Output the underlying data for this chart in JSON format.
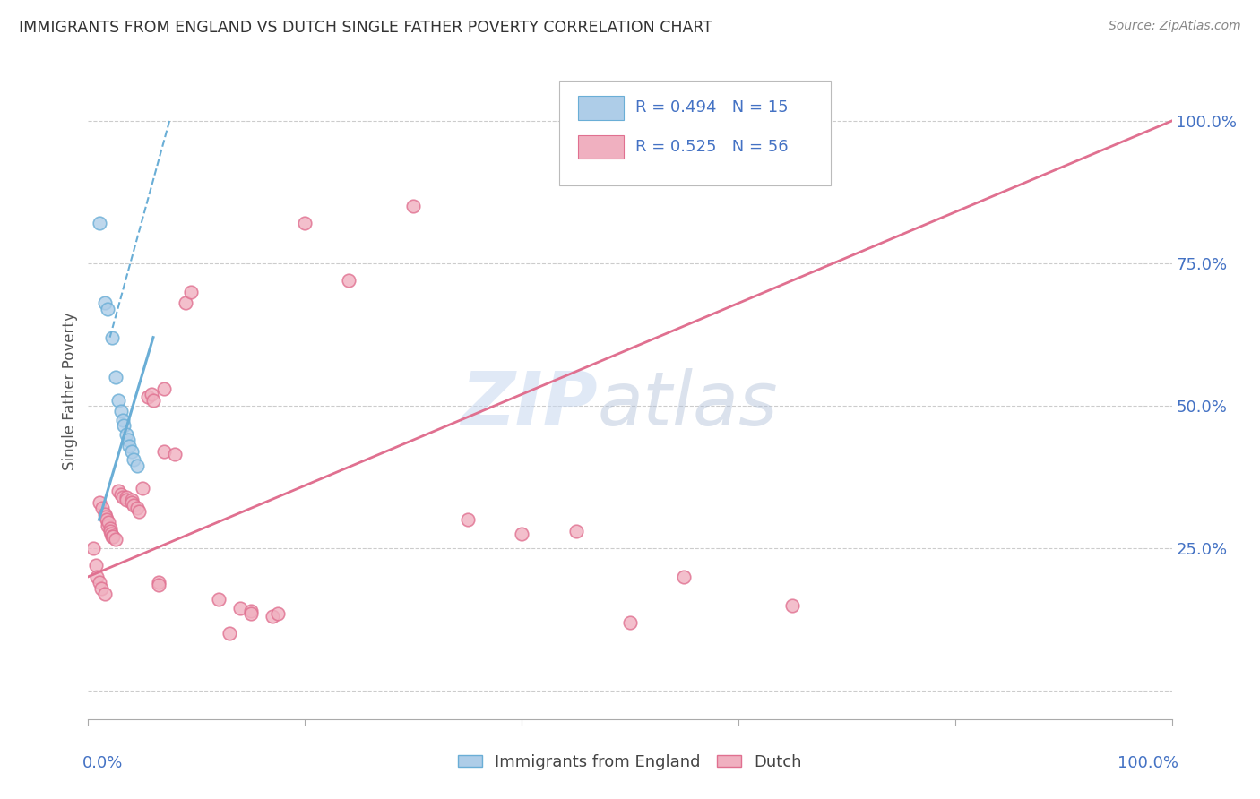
{
  "title": "IMMIGRANTS FROM ENGLAND VS DUTCH SINGLE FATHER POVERTY CORRELATION CHART",
  "source": "Source: ZipAtlas.com",
  "ylabel": "Single Father Poverty",
  "yaxis_labels": [
    "25.0%",
    "50.0%",
    "75.0%",
    "100.0%"
  ],
  "legend_entries": [
    {
      "label": "R = 0.494   N = 15",
      "color": "#a8c4e0"
    },
    {
      "label": "R = 0.525   N = 56",
      "color": "#f4a0b0"
    }
  ],
  "legend_label1": "Immigrants from England",
  "legend_label2": "Dutch",
  "watermark_zip": "ZIP",
  "watermark_atlas": "atlas",
  "blue_scatter": [
    [
      1.0,
      82.0
    ],
    [
      1.5,
      68.0
    ],
    [
      1.8,
      67.0
    ],
    [
      2.2,
      62.0
    ],
    [
      2.5,
      55.0
    ],
    [
      2.8,
      51.0
    ],
    [
      3.0,
      49.0
    ],
    [
      3.2,
      47.5
    ],
    [
      3.3,
      46.5
    ],
    [
      3.5,
      45.0
    ],
    [
      3.7,
      44.0
    ],
    [
      3.8,
      43.0
    ],
    [
      4.0,
      42.0
    ],
    [
      4.2,
      40.5
    ],
    [
      4.5,
      39.5
    ]
  ],
  "pink_scatter": [
    [
      0.5,
      25.0
    ],
    [
      0.7,
      22.0
    ],
    [
      0.8,
      20.0
    ],
    [
      1.0,
      19.0
    ],
    [
      1.0,
      33.0
    ],
    [
      1.2,
      18.0
    ],
    [
      1.3,
      32.0
    ],
    [
      1.5,
      31.0
    ],
    [
      1.5,
      17.0
    ],
    [
      1.6,
      30.5
    ],
    [
      1.7,
      30.0
    ],
    [
      1.8,
      29.0
    ],
    [
      1.9,
      29.5
    ],
    [
      2.0,
      28.5
    ],
    [
      2.0,
      28.0
    ],
    [
      2.1,
      27.5
    ],
    [
      2.2,
      27.0
    ],
    [
      2.3,
      27.0
    ],
    [
      2.5,
      26.5
    ],
    [
      2.8,
      35.0
    ],
    [
      3.0,
      34.5
    ],
    [
      3.2,
      34.0
    ],
    [
      3.5,
      34.0
    ],
    [
      3.5,
      33.5
    ],
    [
      4.0,
      33.5
    ],
    [
      4.0,
      33.0
    ],
    [
      4.2,
      32.5
    ],
    [
      4.5,
      32.0
    ],
    [
      4.7,
      31.5
    ],
    [
      5.0,
      35.5
    ],
    [
      5.5,
      51.5
    ],
    [
      5.8,
      52.0
    ],
    [
      6.0,
      51.0
    ],
    [
      6.5,
      19.0
    ],
    [
      6.5,
      18.5
    ],
    [
      7.0,
      53.0
    ],
    [
      7.0,
      42.0
    ],
    [
      8.0,
      41.5
    ],
    [
      9.0,
      68.0
    ],
    [
      9.5,
      70.0
    ],
    [
      12.0,
      16.0
    ],
    [
      13.0,
      10.0
    ],
    [
      14.0,
      14.5
    ],
    [
      15.0,
      14.0
    ],
    [
      15.0,
      13.5
    ],
    [
      17.0,
      13.0
    ],
    [
      17.5,
      13.5
    ],
    [
      20.0,
      82.0
    ],
    [
      24.0,
      72.0
    ],
    [
      30.0,
      85.0
    ],
    [
      35.0,
      30.0
    ],
    [
      40.0,
      27.5
    ],
    [
      45.0,
      28.0
    ],
    [
      50.0,
      12.0
    ],
    [
      55.0,
      20.0
    ],
    [
      65.0,
      15.0
    ]
  ],
  "blue_line_solid": {
    "x": [
      1.0,
      6.0
    ],
    "y": [
      30.0,
      62.0
    ]
  },
  "blue_line_dashed": {
    "x": [
      2.0,
      7.5
    ],
    "y": [
      62.0,
      100.0
    ]
  },
  "pink_line": {
    "x": [
      0.0,
      100.0
    ],
    "y": [
      20.0,
      100.0
    ]
  },
  "xlim": [
    0.0,
    100.0
  ],
  "ylim": [
    -5.0,
    110.0
  ],
  "yticks": [
    0.0,
    25.0,
    50.0,
    75.0,
    100.0
  ],
  "xtick_positions": [
    0,
    20,
    40,
    60,
    80,
    100
  ],
  "bg_color": "#ffffff",
  "scatter_size": 110,
  "blue_color": "#6aaed6",
  "blue_fill": "#aecde8",
  "pink_color": "#e07090",
  "pink_fill": "#f0b0c0",
  "title_color": "#333333",
  "axis_label_color": "#4472c4",
  "grid_color": "#cccccc"
}
